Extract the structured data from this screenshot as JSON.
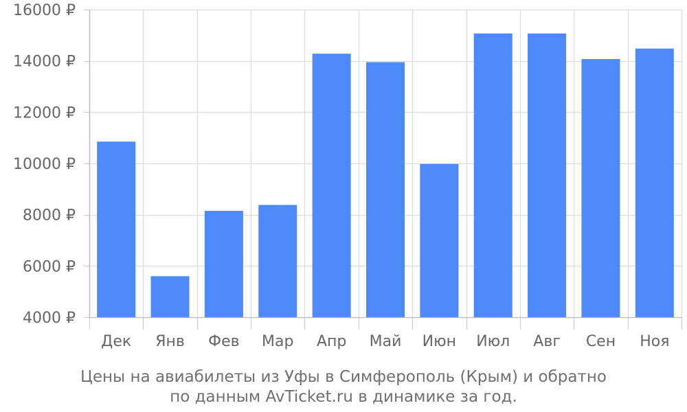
{
  "chart_data": {
    "type": "bar",
    "categories": [
      "Дек",
      "Янв",
      "Фев",
      "Мар",
      "Апр",
      "Май",
      "Июн",
      "Июл",
      "Авг",
      "Сен",
      "Ноя"
    ],
    "values": [
      10850,
      5600,
      8150,
      8380,
      14280,
      13950,
      9980,
      15070,
      15070,
      14070,
      14480
    ],
    "ylim": [
      4000,
      16000
    ],
    "yticks": [
      4000,
      6000,
      8000,
      10000,
      12000,
      14000,
      16000
    ],
    "ytick_suffix": " ₽",
    "grid": true,
    "bar_color": "#4d89f9",
    "caption": [
      "Цены на авиабилеты из Уфы в Симферополь (Крым) и обратно",
      "по данным AvTicket.ru в динамике за год."
    ]
  }
}
